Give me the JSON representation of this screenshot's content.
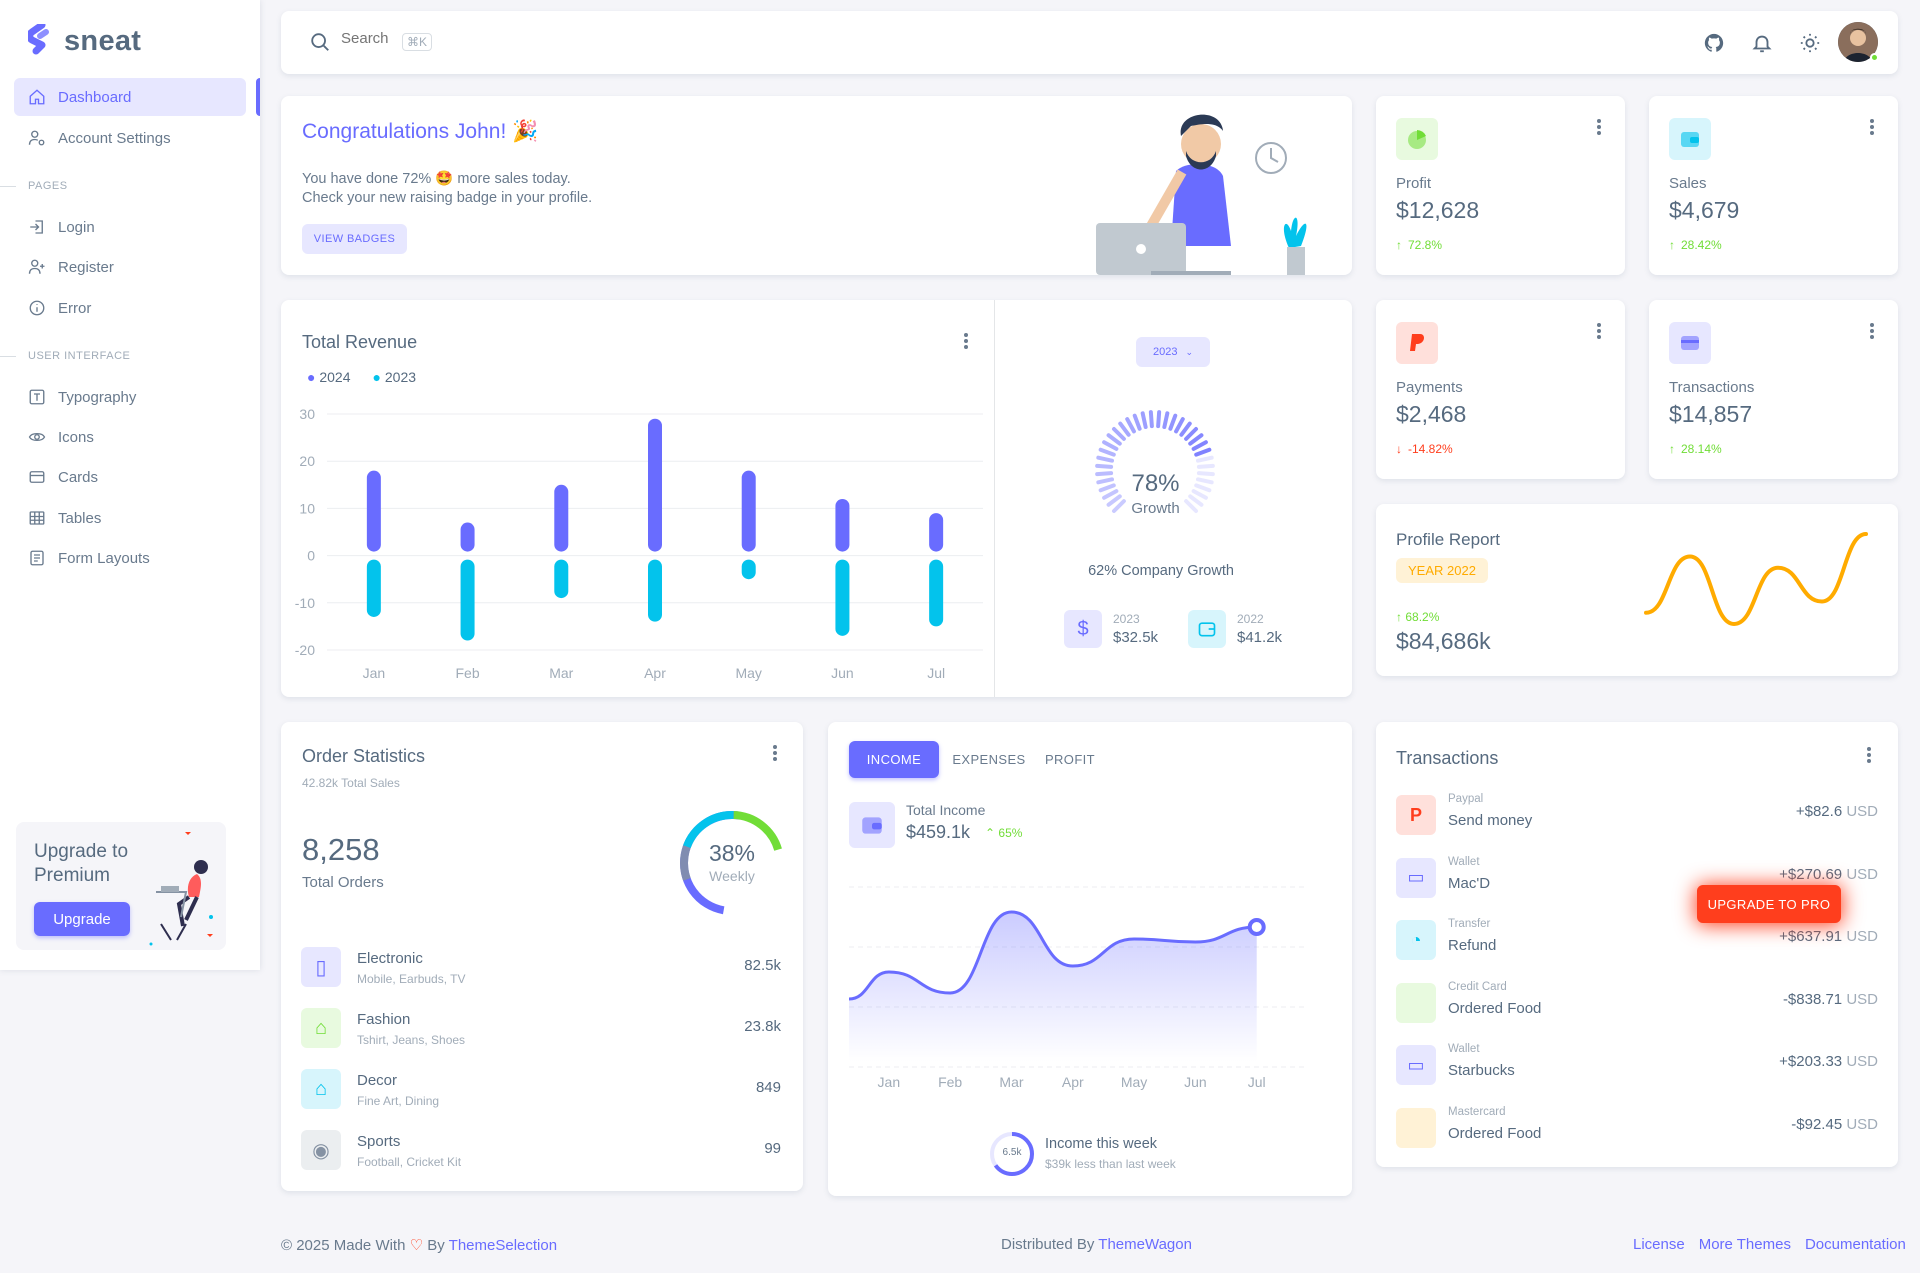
{
  "brand": {
    "name": "sneat",
    "color": "#696cff"
  },
  "sidebar": {
    "items": [
      {
        "label": "Dashboard",
        "icon": "home-icon",
        "active": true
      },
      {
        "label": "Account Settings",
        "icon": "user-cog-icon"
      }
    ],
    "pages_header": "PAGES",
    "pages": [
      {
        "label": "Login",
        "icon": "login-icon"
      },
      {
        "label": "Register",
        "icon": "user-plus-icon"
      },
      {
        "label": "Error",
        "icon": "info-circle-icon"
      }
    ],
    "ui_header": "USER INTERFACE",
    "ui": [
      {
        "label": "Typography",
        "icon": "typography-icon"
      },
      {
        "label": "Icons",
        "icon": "eye-icon"
      },
      {
        "label": "Cards",
        "icon": "credit-card-icon"
      },
      {
        "label": "Tables",
        "icon": "table-icon"
      },
      {
        "label": "Form Layouts",
        "icon": "form-icon"
      }
    ],
    "upgrade": {
      "title": "Upgrade to Premium",
      "button": "Upgrade"
    }
  },
  "navbar": {
    "search_placeholder": "Search",
    "shortcut": "⌘K"
  },
  "welcome": {
    "title": "Congratulations John! 🎉",
    "line1": "You have done 72% 🤩 more sales today.",
    "line2": "Check your new raising badge in your profile.",
    "button": "VIEW BADGES"
  },
  "stats": {
    "profit": {
      "title": "Profit",
      "value": "$12,628",
      "change": "72.8%",
      "dir": "up",
      "icon": "pie-chart-icon"
    },
    "sales": {
      "title": "Sales",
      "value": "$4,679",
      "change": "28.42%",
      "dir": "up",
      "icon": "wallet-icon"
    },
    "payments": {
      "title": "Payments",
      "value": "$2,468",
      "change": "-14.82%",
      "dir": "down",
      "icon": "paypal-icon"
    },
    "transactions": {
      "title": "Transactions",
      "value": "$14,857",
      "change": "28.14%",
      "dir": "up",
      "icon": "card-icon"
    }
  },
  "revenue": {
    "title": "Total Revenue",
    "year_select": "2023",
    "growth_pct": "78%",
    "growth_label": "Growth",
    "growth_value": 0.78,
    "company_growth": "62% Company Growth",
    "years": [
      {
        "year": "2023",
        "value": "$32.5k",
        "icon": "dollar-icon"
      },
      {
        "year": "2022",
        "value": "$41.2k",
        "icon": "wallet-icon"
      }
    ]
  },
  "chart_data": [
    {
      "type": "bar",
      "title": "Total Revenue",
      "categories": [
        "Jan",
        "Feb",
        "Mar",
        "Apr",
        "May",
        "Jun",
        "Jul"
      ],
      "series": [
        {
          "name": "2024",
          "values": [
            18,
            7,
            15,
            29,
            18,
            12,
            9
          ],
          "color": "#696cff"
        },
        {
          "name": "2023",
          "values": [
            -13,
            -18,
            -9,
            -14,
            -5,
            -17,
            -15
          ],
          "color": "#03c3ec"
        }
      ],
      "yticks": [
        30,
        20,
        10,
        0,
        -10,
        -20
      ],
      "ylim": [
        -20,
        30
      ],
      "legend": "top-left",
      "grid": true
    },
    {
      "type": "line",
      "title": "Profile Report",
      "values": [
        4,
        9,
        3,
        8,
        5,
        11
      ],
      "color": "#ffab00"
    },
    {
      "type": "area",
      "title": "Total Income",
      "categories": [
        "",
        "Jan",
        "Feb",
        "Mar",
        "Apr",
        "May",
        "Jun",
        "Jul"
      ],
      "values": [
        21,
        30,
        23,
        50,
        32,
        41,
        40,
        45
      ],
      "color": "#696cff"
    }
  ],
  "profile_report": {
    "title": "Profile Report",
    "badge": "YEAR 2022",
    "change": "68.2%",
    "value": "$84,686k"
  },
  "order_stats": {
    "title": "Order Statistics",
    "subtitle": "42.82k Total Sales",
    "total": "8,258",
    "total_label": "Total Orders",
    "donut_pct": "38%",
    "donut_label": "Weekly",
    "items": [
      {
        "name": "Electronic",
        "desc": "Mobile, Earbuds, TV",
        "value": "82.5k",
        "icon": "mobile-icon",
        "bg": "#e7e7ff",
        "fg": "#696cff"
      },
      {
        "name": "Fashion",
        "desc": "Tshirt, Jeans, Shoes",
        "value": "23.8k",
        "icon": "hanger-icon",
        "bg": "#e8fadf",
        "fg": "#71dd37"
      },
      {
        "name": "Decor",
        "desc": "Fine Art, Dining",
        "value": "849",
        "icon": "home-icon",
        "bg": "#d7f5fc",
        "fg": "#03c3ec"
      },
      {
        "name": "Sports",
        "desc": "Football, Cricket Kit",
        "value": "99",
        "icon": "football-icon",
        "bg": "#ebeef0",
        "fg": "#8592a3"
      }
    ]
  },
  "income": {
    "tabs": [
      "INCOME",
      "EXPENSES",
      "PROFIT"
    ],
    "label": "Total Income",
    "value": "$459.1k",
    "change": "65%",
    "week_value": "6.5k",
    "week_title": "Income this week",
    "week_sub": "$39k less than last week"
  },
  "transactions": {
    "title": "Transactions",
    "items": [
      {
        "source": "Paypal",
        "desc": "Send money",
        "amount": "+$82.6",
        "currency": "USD",
        "icon": "paypal-icon",
        "bg": "#ffe0db",
        "fg": "#ff3e1d"
      },
      {
        "source": "Wallet",
        "desc": "Mac'D",
        "amount": "+$270.69",
        "currency": "USD",
        "icon": "wallet-icon",
        "bg": "#e7e7ff",
        "fg": "#696cff"
      },
      {
        "source": "Transfer",
        "desc": "Refund",
        "amount": "+$637.91",
        "currency": "USD",
        "icon": "chart-icon",
        "bg": "#d7f5fc",
        "fg": "#03c3ec"
      },
      {
        "source": "Credit Card",
        "desc": "Ordered Food",
        "amount": "-$838.71",
        "currency": "USD",
        "icon": "credit-card-icon",
        "bg": "#e8fadf",
        "fg": "#71dd37"
      },
      {
        "source": "Wallet",
        "desc": "Starbucks",
        "amount": "+$203.33",
        "currency": "USD",
        "icon": "wallet-icon",
        "bg": "#e7e7ff",
        "fg": "#696cff"
      },
      {
        "source": "Mastercard",
        "desc": "Ordered Food",
        "amount": "-$92.45",
        "currency": "USD",
        "icon": "mastercard-icon",
        "bg": "#fff2d6",
        "fg": "#ffab00"
      }
    ],
    "upgrade_pro": "UPGRADE TO PRO"
  },
  "footer": {
    "left_prefix": "© 2025 Made With",
    "left_by": "By",
    "left_link": "ThemeSelection",
    "center_prefix": "Distributed By",
    "center_link": "ThemeWagon",
    "links": [
      "License",
      "More Themes",
      "Documentation"
    ]
  }
}
